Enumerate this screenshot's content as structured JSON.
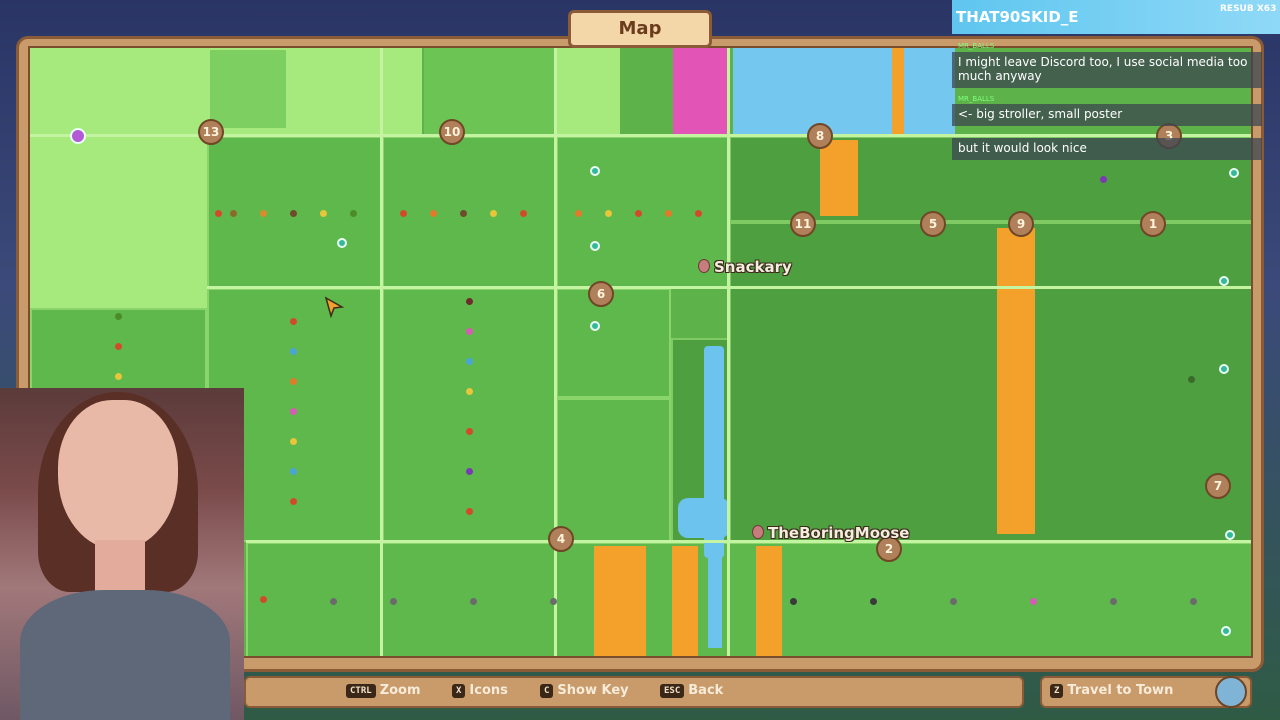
{
  "map": {
    "title": "Map",
    "plot_numbers": [
      "13",
      "10",
      "8",
      "3",
      "11",
      "5",
      "9",
      "1",
      "6",
      "7",
      "4",
      "2"
    ],
    "players": [
      {
        "name": "Snackary"
      },
      {
        "name": "TheBoringMoose"
      }
    ]
  },
  "footer": {
    "zoom": {
      "key": "CTRL",
      "label": "Zoom"
    },
    "icons": {
      "key": "X",
      "label": "Icons"
    },
    "show_key": {
      "key": "C",
      "label": "Show Key"
    },
    "back": {
      "key": "ESC",
      "label": "Back"
    },
    "travel": {
      "key": "Z",
      "label": "Travel to Town"
    }
  },
  "chat": {
    "channel_user": "THAT90SKID_E",
    "resub": "RESUB X63",
    "messages": [
      {
        "author": "MR_BALLS",
        "text": "I might leave Discord too, I use social media too much anyway"
      },
      {
        "author": "MR_BALLS",
        "text": "<- big stroller, small poster"
      },
      {
        "author": "",
        "text": "but it would look nice"
      }
    ]
  },
  "colors": {
    "grass": "#5db34a",
    "light_grass": "#a6ea7d",
    "orange": "#f4a12b",
    "pink": "#e254b5",
    "blue": "#74c7ef",
    "frame": "#c99a6a"
  },
  "icons": [
    "globe-icon",
    "player-pin-icon",
    "cursor-icon"
  ]
}
